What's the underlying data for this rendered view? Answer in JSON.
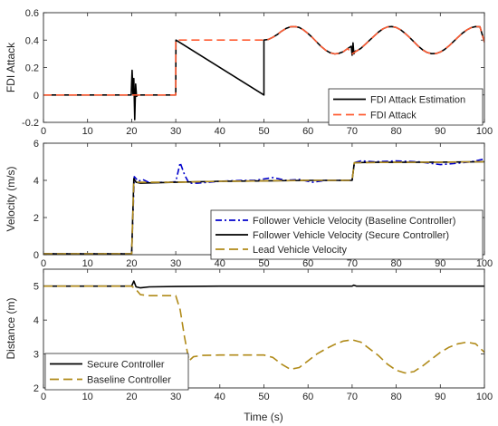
{
  "figure": {
    "xlabel": "Time (s)"
  },
  "chart_data": [
    {
      "type": "line",
      "title": "",
      "xlabel": "",
      "ylabel": "FDI Attack",
      "xlim": [
        0,
        100
      ],
      "ylim": [
        -0.2,
        0.6
      ],
      "xticks": [
        0,
        10,
        20,
        30,
        40,
        50,
        60,
        70,
        80,
        90,
        100
      ],
      "yticks": [
        -0.2,
        0,
        0.2,
        0.4,
        0.6
      ],
      "legend_position": "bottom-right",
      "series": [
        {
          "name": "FDI Attack Estimation",
          "color": "#000000",
          "dash": "solid",
          "points": [
            [
              0,
              0
            ],
            [
              19.9,
              0
            ],
            [
              20.1,
              0.18
            ],
            [
              20.3,
              0.0
            ],
            [
              20.5,
              0.12
            ],
            [
              20.7,
              -0.18
            ],
            [
              20.9,
              0.08
            ],
            [
              21.1,
              -0.01
            ],
            [
              21.4,
              0
            ],
            [
              30,
              0
            ],
            [
              30.05,
              0.4
            ],
            [
              50,
              0
            ],
            [
              50,
              0.4
            ],
            [
              51,
              0.405
            ],
            [
              52,
              0.42
            ],
            [
              53,
              0.44
            ],
            [
              54,
              0.465
            ],
            [
              55,
              0.485
            ],
            [
              56,
              0.497
            ],
            [
              57,
              0.499
            ],
            [
              58,
              0.492
            ],
            [
              59,
              0.474
            ],
            [
              60,
              0.448
            ],
            [
              61,
              0.418
            ],
            [
              62,
              0.385
            ],
            [
              63,
              0.353
            ],
            [
              64,
              0.326
            ],
            [
              65,
              0.308
            ],
            [
              66,
              0.3
            ],
            [
              67,
              0.303
            ],
            [
              68,
              0.316
            ],
            [
              69,
              0.339
            ],
            [
              69.8,
              0.355
            ],
            [
              70.0,
              0.29
            ],
            [
              70.2,
              0.38
            ],
            [
              70.4,
              0.3
            ],
            [
              70.7,
              0.32
            ],
            [
              71,
              0.32
            ],
            [
              72,
              0.34
            ],
            [
              73,
              0.37
            ],
            [
              74,
              0.4
            ],
            [
              75,
              0.43
            ],
            [
              76,
              0.459
            ],
            [
              77,
              0.482
            ],
            [
              78,
              0.496
            ],
            [
              79,
              0.499
            ],
            [
              80,
              0.492
            ],
            [
              81,
              0.475
            ],
            [
              82,
              0.45
            ],
            [
              83,
              0.42
            ],
            [
              84,
              0.388
            ],
            [
              85,
              0.356
            ],
            [
              86,
              0.329
            ],
            [
              87,
              0.31
            ],
            [
              88,
              0.301
            ],
            [
              89,
              0.302
            ],
            [
              90,
              0.313
            ],
            [
              91,
              0.333
            ],
            [
              92,
              0.359
            ],
            [
              93,
              0.39
            ],
            [
              94,
              0.421
            ],
            [
              95,
              0.45
            ],
            [
              96,
              0.474
            ],
            [
              97,
              0.491
            ],
            [
              98,
              0.499
            ],
            [
              99,
              0.497
            ],
            [
              100,
              0.385
            ]
          ]
        },
        {
          "name": "FDI Attack",
          "color": "#ff5c33",
          "dash": "dashed",
          "points": [
            [
              0,
              0
            ],
            [
              30,
              0
            ],
            [
              30,
              0.4
            ],
            [
              50,
              0.4
            ],
            [
              51,
              0.405
            ],
            [
              52,
              0.42
            ],
            [
              53,
              0.44
            ],
            [
              54,
              0.465
            ],
            [
              55,
              0.485
            ],
            [
              56,
              0.497
            ],
            [
              57,
              0.499
            ],
            [
              58,
              0.492
            ],
            [
              59,
              0.474
            ],
            [
              60,
              0.448
            ],
            [
              61,
              0.418
            ],
            [
              62,
              0.385
            ],
            [
              63,
              0.353
            ],
            [
              64,
              0.326
            ],
            [
              65,
              0.308
            ],
            [
              66,
              0.3
            ],
            [
              67,
              0.303
            ],
            [
              68,
              0.316
            ],
            [
              69,
              0.339
            ],
            [
              70,
              0.3
            ],
            [
              71,
              0.32
            ],
            [
              72,
              0.34
            ],
            [
              73,
              0.37
            ],
            [
              74,
              0.4
            ],
            [
              75,
              0.43
            ],
            [
              76,
              0.459
            ],
            [
              77,
              0.482
            ],
            [
              78,
              0.496
            ],
            [
              79,
              0.499
            ],
            [
              80,
              0.492
            ],
            [
              81,
              0.475
            ],
            [
              82,
              0.45
            ],
            [
              83,
              0.42
            ],
            [
              84,
              0.388
            ],
            [
              85,
              0.356
            ],
            [
              86,
              0.329
            ],
            [
              87,
              0.31
            ],
            [
              88,
              0.301
            ],
            [
              89,
              0.302
            ],
            [
              90,
              0.313
            ],
            [
              91,
              0.333
            ],
            [
              92,
              0.359
            ],
            [
              93,
              0.39
            ],
            [
              94,
              0.421
            ],
            [
              95,
              0.45
            ],
            [
              96,
              0.474
            ],
            [
              97,
              0.491
            ],
            [
              98,
              0.499
            ],
            [
              99,
              0.497
            ],
            [
              100,
              0.385
            ]
          ]
        }
      ]
    },
    {
      "type": "line",
      "title": "",
      "xlabel": "",
      "ylabel": "Velocity (m/s)",
      "xlim": [
        0,
        100
      ],
      "ylim": [
        0,
        6
      ],
      "xticks": [
        0,
        10,
        20,
        30,
        40,
        50,
        60,
        70,
        80,
        90,
        100
      ],
      "yticks": [
        0,
        2,
        4,
        6
      ],
      "legend_position": "bottom-right",
      "series": [
        {
          "name": "Follower Vehicle Velocity (Baseline Controller)",
          "color": "#0000cc",
          "dash": "dashdot",
          "points": [
            [
              0,
              0.05
            ],
            [
              20,
              0.05
            ],
            [
              20.6,
              4.2
            ],
            [
              21.5,
              3.95
            ],
            [
              22.5,
              4.05
            ],
            [
              24,
              3.88
            ],
            [
              28,
              3.9
            ],
            [
              30,
              3.92
            ],
            [
              31,
              4.95
            ],
            [
              32,
              4.3
            ],
            [
              33,
              3.85
            ],
            [
              35,
              3.85
            ],
            [
              40,
              3.95
            ],
            [
              45,
              4.0
            ],
            [
              48,
              4.0
            ],
            [
              52,
              4.15
            ],
            [
              55,
              4.0
            ],
            [
              58,
              4.05
            ],
            [
              61,
              3.9
            ],
            [
              64,
              4.0
            ],
            [
              67,
              4.0
            ],
            [
              70,
              4.0
            ],
            [
              70.5,
              4.95
            ],
            [
              72,
              5.05
            ],
            [
              75,
              5.0
            ],
            [
              80,
              5.05
            ],
            [
              85,
              5.0
            ],
            [
              90,
              4.85
            ],
            [
              93,
              4.9
            ],
            [
              97,
              5.0
            ],
            [
              100,
              5.15
            ]
          ]
        },
        {
          "name": "Follower Vehicle Velocity (Secure Controller)",
          "color": "#000000",
          "dash": "solid",
          "points": [
            [
              0,
              0.05
            ],
            [
              20,
              0.05
            ],
            [
              20.5,
              4.1
            ],
            [
              21,
              3.9
            ],
            [
              22,
              3.85
            ],
            [
              30,
              3.9
            ],
            [
              40,
              3.95
            ],
            [
              50,
              3.97
            ],
            [
              60,
              4.0
            ],
            [
              70,
              4.0
            ],
            [
              70.5,
              4.95
            ],
            [
              75,
              4.97
            ],
            [
              80,
              4.97
            ],
            [
              90,
              4.98
            ],
            [
              100,
              5.0
            ]
          ]
        },
        {
          "name": "Lead Vehicle Velocity",
          "color": "#b08a18",
          "dash": "longdash",
          "points": [
            [
              0,
              0.05
            ],
            [
              20,
              0.05
            ],
            [
              20.5,
              3.9
            ],
            [
              30,
              3.9
            ],
            [
              40,
              3.95
            ],
            [
              50,
              3.97
            ],
            [
              60,
              4.0
            ],
            [
              70,
              4.0
            ],
            [
              70.5,
              4.95
            ],
            [
              80,
              4.97
            ],
            [
              90,
              4.98
            ],
            [
              100,
              5.0
            ]
          ]
        }
      ]
    },
    {
      "type": "line",
      "title": "",
      "xlabel": "Time (s)",
      "ylabel": "Distance (m)",
      "xlim": [
        0,
        100
      ],
      "ylim": [
        2,
        5.5
      ],
      "xticks": [
        0,
        10,
        20,
        30,
        40,
        50,
        60,
        70,
        80,
        90,
        100
      ],
      "yticks": [
        2,
        3,
        4,
        5
      ],
      "legend_position": "bottom-left",
      "series": [
        {
          "name": "Secure Controller",
          "color": "#000000",
          "dash": "solid",
          "points": [
            [
              0,
              5.0
            ],
            [
              20,
              5.0
            ],
            [
              20.5,
              5.15
            ],
            [
              21,
              4.98
            ],
            [
              22,
              4.95
            ],
            [
              24,
              4.98
            ],
            [
              30,
              4.99
            ],
            [
              40,
              5.0
            ],
            [
              50,
              5.0
            ],
            [
              60,
              5.0
            ],
            [
              70,
              5.0
            ],
            [
              70.4,
              5.03
            ],
            [
              71,
              5.0
            ],
            [
              80,
              5.0
            ],
            [
              90,
              5.0
            ],
            [
              100,
              5.0
            ]
          ]
        },
        {
          "name": "Baseline Controller",
          "color": "#b08a18",
          "dash": "longdash",
          "points": [
            [
              0,
              5.0
            ],
            [
              20,
              5.0
            ],
            [
              21,
              4.9
            ],
            [
              22,
              4.75
            ],
            [
              24,
              4.72
            ],
            [
              30,
              4.72
            ],
            [
              31,
              4.3
            ],
            [
              32,
              3.5
            ],
            [
              33,
              2.8
            ],
            [
              34,
              2.92
            ],
            [
              36,
              2.96
            ],
            [
              40,
              2.97
            ],
            [
              45,
              2.97
            ],
            [
              50,
              2.97
            ],
            [
              52,
              2.9
            ],
            [
              54,
              2.7
            ],
            [
              56,
              2.55
            ],
            [
              58,
              2.6
            ],
            [
              60,
              2.8
            ],
            [
              62,
              3.0
            ],
            [
              64,
              3.15
            ],
            [
              66,
              3.28
            ],
            [
              68,
              3.38
            ],
            [
              70,
              3.42
            ],
            [
              72,
              3.35
            ],
            [
              74,
              3.15
            ],
            [
              76,
              2.95
            ],
            [
              78,
              2.7
            ],
            [
              80,
              2.52
            ],
            [
              82,
              2.44
            ],
            [
              84,
              2.48
            ],
            [
              86,
              2.65
            ],
            [
              88,
              2.85
            ],
            [
              90,
              3.05
            ],
            [
              92,
              3.2
            ],
            [
              94,
              3.3
            ],
            [
              96,
              3.35
            ],
            [
              98,
              3.3
            ],
            [
              100,
              3.05
            ]
          ]
        }
      ]
    }
  ]
}
